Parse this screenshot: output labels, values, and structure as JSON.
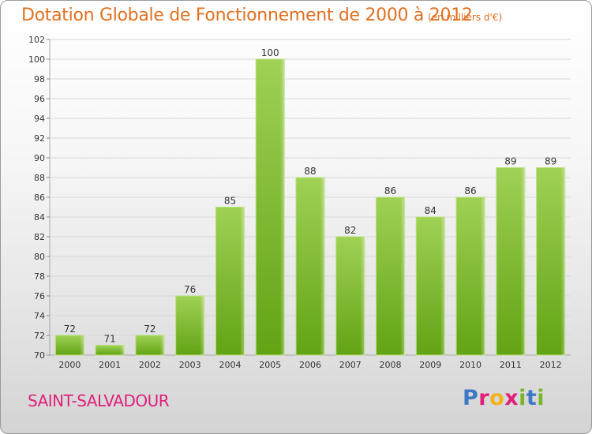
{
  "header": {
    "title": "Dotation Globale de Fonctionnement de 2000 à 2012",
    "subtitle": "(en milliers d'€)"
  },
  "footer": {
    "commune": "SAINT-SALVADOUR"
  },
  "logo": {
    "text": "Proxiti",
    "colors": [
      "#3f79c4",
      "#e0207a",
      "#f2b21a",
      "#e0207a",
      "#7ab52e",
      "#3f79c4",
      "#7ab52e"
    ]
  },
  "colors": {
    "bar_top": "#9fd155",
    "bar_bottom": "#62a314",
    "bar_edge": "#b8e07a",
    "title": "#e07020",
    "commune": "#e0207a",
    "axis_text": "#333333",
    "grid": "#d8d8d8"
  },
  "chart_data": {
    "type": "bar",
    "categories": [
      "2000",
      "2001",
      "2002",
      "2003",
      "2004",
      "2005",
      "2006",
      "2007",
      "2008",
      "2009",
      "2010",
      "2011",
      "2012"
    ],
    "values": [
      72,
      71,
      72,
      76,
      85,
      100,
      88,
      82,
      86,
      84,
      86,
      89,
      89
    ],
    "ylim": [
      70,
      102
    ],
    "yticks": [
      70,
      72,
      74,
      76,
      78,
      80,
      82,
      84,
      86,
      88,
      90,
      92,
      94,
      96,
      98,
      100,
      102
    ],
    "grid": true,
    "data_labels": true
  }
}
